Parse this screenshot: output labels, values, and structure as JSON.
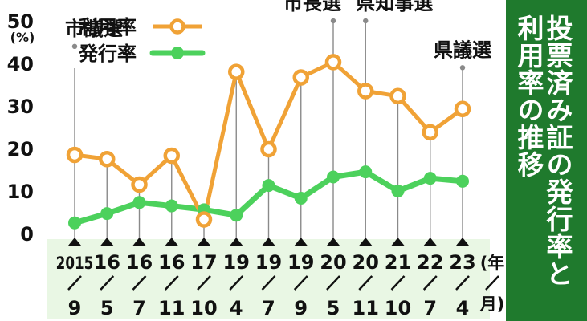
{
  "title": {
    "line1": "投票済み証の発行率と",
    "line2": "利用率の推移"
  },
  "colors": {
    "usage": "#f0a236",
    "issuance": "#4cd15c",
    "panel": "#1f7a2d",
    "band": "#e9f7e4"
  },
  "chart_data": {
    "type": "line",
    "ylabel": "(%)",
    "ylim": [
      0,
      50
    ],
    "yticks": [
      "0",
      "10",
      "20",
      "30",
      "40",
      "50"
    ],
    "categories": [
      {
        "year": "2015",
        "month": "9"
      },
      {
        "year": "16",
        "month": "5"
      },
      {
        "year": "16",
        "month": "7"
      },
      {
        "year": "16",
        "month": "11"
      },
      {
        "year": "17",
        "month": "10"
      },
      {
        "year": "19",
        "month": "4"
      },
      {
        "year": "19",
        "month": "7"
      },
      {
        "year": "19",
        "month": "9"
      },
      {
        "year": "20",
        "month": "5"
      },
      {
        "year": "20",
        "month": "11"
      },
      {
        "year": "21",
        "month": "10"
      },
      {
        "year": "22",
        "month": "7"
      },
      {
        "year": "23",
        "month": "4"
      }
    ],
    "unit_label": {
      "year": "年",
      "month": "月"
    },
    "series": [
      {
        "name": "利用率",
        "values": [
          18.5,
          17.5,
          11.5,
          18.3,
          3.3,
          38,
          19.8,
          36.7,
          40.3,
          33.5,
          32.3,
          23.8,
          29.3
        ]
      },
      {
        "name": "発行率",
        "values": [
          2.5,
          4.7,
          7.3,
          6.5,
          5.6,
          4.3,
          11.3,
          8.3,
          13.3,
          14.5,
          10.0,
          13.0,
          12.3
        ]
      }
    ],
    "annotations": [
      {
        "index": 0,
        "text": "市議選",
        "top_value": 44
      },
      {
        "index": 8,
        "text": "市長選",
        "top_value": 50
      },
      {
        "index": 9,
        "text": "県知事選",
        "top_value": 50
      },
      {
        "index": 12,
        "text": "県議選",
        "top_value": 39
      }
    ],
    "legend_position": "top-left"
  }
}
